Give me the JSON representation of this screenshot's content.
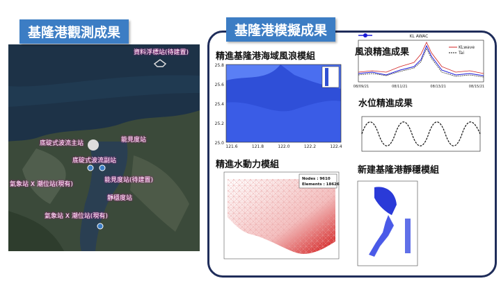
{
  "observation": {
    "title": "基隆港觀測成果",
    "stations": [
      "資料浮標站(待建置)",
      "底碇式波流主站",
      "能見度站",
      "底碇式波流副站",
      "能見度站(待建置)",
      "靜穩度站",
      "氣象站 X 潮位站(現有)",
      "氣象站 X 潮位站(現有)"
    ]
  },
  "simulation": {
    "title": "基隆港模擬成果",
    "wave_model": {
      "title": "精進基隆港海域風浪模組",
      "yticks": [
        "25.8",
        "25.6",
        "25.4",
        "25.2",
        "25.0"
      ],
      "xticks": [
        "121.6",
        "121.8",
        "122.0",
        "122.2",
        "122.4"
      ]
    },
    "wave_result": {
      "title": "風浪精進成果",
      "chart_title": "KL AWAC",
      "legend": [
        "KLwave",
        "Tai"
      ],
      "xticks": [
        "08/09/21",
        "08/11/21",
        "08/13/21",
        "08/15/21"
      ]
    },
    "water_level": {
      "title": "水位精進成果"
    },
    "hydro_model": {
      "title": "精進水動力模組",
      "nodes": "Nodes : 9610",
      "elements": "Elements : 18626"
    },
    "calm_model": {
      "title": "新建基隆港靜穩模組"
    }
  }
}
